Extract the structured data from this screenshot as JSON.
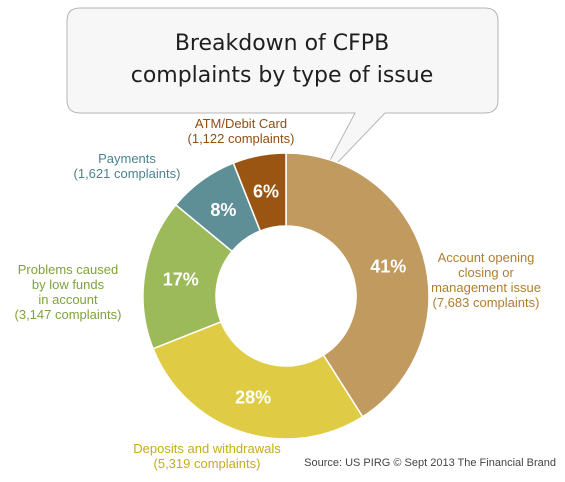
{
  "chart_data": {
    "type": "pie",
    "title_lines": [
      "Breakdown of CFPB",
      "complaints by type of issue"
    ],
    "slices": [
      {
        "pct_label": "41%",
        "value": 41,
        "color": "#c09a5f",
        "label_lines": [
          "Account opening",
          "closing or",
          "management issue",
          "(7,683 complaints)"
        ]
      },
      {
        "pct_label": "28%",
        "value": 28,
        "color": "#e0cc44",
        "label_lines": [
          "Deposits and withdrawals",
          "(5,319 complaints)"
        ]
      },
      {
        "pct_label": "17%",
        "value": 17,
        "color": "#9dba5a",
        "label_lines": [
          "Problems caused",
          "by low funds",
          "in account",
          "(3,147 complaints)"
        ]
      },
      {
        "pct_label": "8%",
        "value": 8,
        "color": "#5e8e96",
        "label_lines": [
          "Payments",
          "(1,621 complaints)"
        ]
      },
      {
        "pct_label": "6%",
        "value": 6,
        "color": "#9b5512",
        "label_lines": [
          "ATM/Debit Card",
          "(1,122 complaints)"
        ]
      }
    ]
  },
  "source": "Source: US PIRG © Sept 2013 The Financial Brand"
}
